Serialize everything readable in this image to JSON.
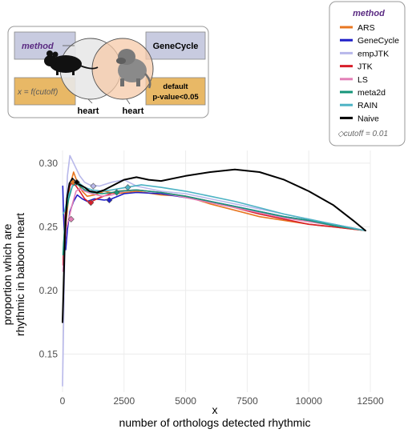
{
  "inset": {
    "method_label": "method",
    "formula": "x = f(cutoff)",
    "left_heart": "heart",
    "right_heart": "heart",
    "genecycle": "GeneCycle",
    "default_line1": "default",
    "default_line2": "p-value<0.05",
    "venn_left_color": "#e8e8e8",
    "venn_right_color": "#f6c9a8",
    "box_color_blue": "#c8cbe0",
    "box_color_orange": "#e8b866",
    "method_color": "#5a2a82"
  },
  "legend": {
    "title": "method",
    "footer_symbol": "◇",
    "footer": "cutoff = 0.01",
    "items": [
      {
        "label": "ARS",
        "color": "#e87722"
      },
      {
        "label": "GeneCycle",
        "color": "#1f1fc8"
      },
      {
        "label": "empJTK",
        "color": "#b8b8ea"
      },
      {
        "label": "JTK",
        "color": "#d81f2a"
      },
      {
        "label": "LS",
        "color": "#e27fb7"
      },
      {
        "label": "meta2d",
        "color": "#16957a"
      },
      {
        "label": "RAIN",
        "color": "#4db3c4"
      },
      {
        "label": "Naive",
        "color": "#000000"
      }
    ]
  },
  "chart_data": {
    "type": "line",
    "xlabel_line1": "x",
    "xlabel_line2": "number of orthologs detected rhythmic",
    "ylabel_line1": "proportion which are",
    "ylabel_line2": "rhythmic in baboon heart",
    "xlim": [
      0,
      12500
    ],
    "ylim": [
      0.12,
      0.31
    ],
    "xticks": [
      0,
      2500,
      5000,
      7500,
      10000,
      12500
    ],
    "xtick_labels": [
      "0",
      "2500",
      "5000",
      "7500",
      "10000",
      "12500"
    ],
    "yticks": [
      0.15,
      0.2,
      0.25,
      0.3
    ],
    "ytick_labels": [
      "0.15",
      "0.20",
      "0.25",
      "0.30"
    ],
    "grid": true,
    "series": [
      {
        "name": "ARS",
        "color": "#e87722",
        "x": [
          50,
          150,
          300,
          450,
          600,
          800,
          1000,
          1300,
          1700,
          2200,
          3000,
          4000,
          5000,
          6000,
          7000,
          8000,
          9000,
          10000,
          11000,
          12300
        ],
        "y": [
          0.23,
          0.255,
          0.282,
          0.293,
          0.285,
          0.278,
          0.274,
          0.275,
          0.278,
          0.276,
          0.278,
          0.275,
          0.274,
          0.268,
          0.263,
          0.258,
          0.255,
          0.252,
          0.25,
          0.247
        ]
      },
      {
        "name": "GeneCycle",
        "color": "#1f1fc8",
        "x": [
          10,
          40,
          80,
          130,
          200,
          300,
          450,
          600,
          800,
          1000,
          1300,
          1700,
          2000,
          2500,
          3000,
          4000,
          5000,
          6000,
          7000,
          8000,
          9000,
          10000,
          11000,
          12300
        ],
        "y": [
          0.282,
          0.262,
          0.242,
          0.232,
          0.248,
          0.262,
          0.27,
          0.275,
          0.272,
          0.27,
          0.272,
          0.271,
          0.272,
          0.276,
          0.277,
          0.276,
          0.273,
          0.27,
          0.266,
          0.262,
          0.258,
          0.255,
          0.252,
          0.247
        ]
      },
      {
        "name": "empJTK",
        "color": "#b8b8ea",
        "x": [
          0,
          50,
          100,
          200,
          300,
          400,
          550,
          700,
          900,
          1100,
          1500,
          2000,
          2500,
          3000,
          4000,
          5000,
          6000,
          7000,
          8000,
          9000,
          10000,
          11000,
          12300
        ],
        "y": [
          0.125,
          0.18,
          0.24,
          0.29,
          0.306,
          0.302,
          0.296,
          0.29,
          0.285,
          0.283,
          0.282,
          0.285,
          0.287,
          0.282,
          0.278,
          0.276,
          0.272,
          0.268,
          0.264,
          0.26,
          0.256,
          0.252,
          0.247
        ]
      },
      {
        "name": "JTK",
        "color": "#d81f2a",
        "x": [
          20,
          60,
          120,
          200,
          300,
          400,
          550,
          700,
          900,
          1100,
          1400,
          1800,
          2200,
          3000,
          4000,
          5000,
          6000,
          7000,
          8000,
          9000,
          10000,
          11000,
          12300
        ],
        "y": [
          0.22,
          0.24,
          0.262,
          0.275,
          0.282,
          0.285,
          0.282,
          0.278,
          0.272,
          0.269,
          0.272,
          0.275,
          0.278,
          0.279,
          0.277,
          0.274,
          0.27,
          0.265,
          0.26,
          0.256,
          0.252,
          0.25,
          0.247
        ]
      },
      {
        "name": "LS",
        "color": "#e27fb7",
        "x": [
          20,
          80,
          150,
          250,
          400,
          550,
          700,
          900,
          1200,
          1600,
          2000,
          2500,
          3000,
          4000,
          5000,
          6000,
          7000,
          8000,
          9000,
          10000,
          11000,
          12300
        ],
        "y": [
          0.215,
          0.232,
          0.248,
          0.256,
          0.268,
          0.278,
          0.28,
          0.278,
          0.276,
          0.274,
          0.275,
          0.278,
          0.279,
          0.277,
          0.273,
          0.269,
          0.265,
          0.261,
          0.257,
          0.254,
          0.251,
          0.247
        ]
      },
      {
        "name": "meta2d",
        "color": "#16957a",
        "x": [
          20,
          80,
          150,
          250,
          400,
          550,
          700,
          900,
          1200,
          1600,
          2000,
          2300,
          3000,
          4000,
          5000,
          6000,
          7000,
          8000,
          9000,
          10000,
          11000,
          12300
        ],
        "y": [
          0.228,
          0.248,
          0.262,
          0.272,
          0.282,
          0.284,
          0.282,
          0.279,
          0.277,
          0.276,
          0.277,
          0.278,
          0.279,
          0.277,
          0.274,
          0.27,
          0.266,
          0.262,
          0.258,
          0.255,
          0.251,
          0.247
        ]
      },
      {
        "name": "RAIN",
        "color": "#4db3c4",
        "x": [
          20,
          80,
          150,
          250,
          400,
          550,
          700,
          900,
          1200,
          1600,
          2000,
          2600,
          3200,
          4000,
          5000,
          6000,
          7000,
          8000,
          9000,
          10000,
          11000,
          12300
        ],
        "y": [
          0.26,
          0.262,
          0.268,
          0.275,
          0.282,
          0.286,
          0.284,
          0.281,
          0.279,
          0.278,
          0.279,
          0.281,
          0.283,
          0.281,
          0.278,
          0.274,
          0.27,
          0.265,
          0.26,
          0.256,
          0.252,
          0.247
        ]
      },
      {
        "name": "Naive",
        "color": "#000000",
        "x": [
          0,
          40,
          100,
          180,
          280,
          400,
          550,
          700,
          900,
          1100,
          1400,
          1700,
          2000,
          2500,
          3000,
          3500,
          4000,
          5000,
          6000,
          7000,
          8000,
          9000,
          10000,
          11000,
          11800,
          12300
        ],
        "y": [
          0.175,
          0.2,
          0.245,
          0.272,
          0.284,
          0.288,
          0.285,
          0.283,
          0.281,
          0.278,
          0.277,
          0.279,
          0.282,
          0.287,
          0.289,
          0.287,
          0.286,
          0.29,
          0.293,
          0.295,
          0.293,
          0.287,
          0.278,
          0.267,
          0.255,
          0.247
        ]
      }
    ],
    "cutoff_points": [
      {
        "series": "ARS",
        "x": 430,
        "y": 0.285
      },
      {
        "series": "GeneCycle",
        "x": 1900,
        "y": 0.271
      },
      {
        "series": "empJTK",
        "x": 1250,
        "y": 0.282
      },
      {
        "series": "JTK",
        "x": 1150,
        "y": 0.269
      },
      {
        "series": "LS",
        "x": 350,
        "y": 0.256
      },
      {
        "series": "meta2d",
        "x": 2200,
        "y": 0.277
      },
      {
        "series": "RAIN",
        "x": 2650,
        "y": 0.281
      },
      {
        "series": "Naive",
        "x": 580,
        "y": 0.285
      }
    ]
  }
}
